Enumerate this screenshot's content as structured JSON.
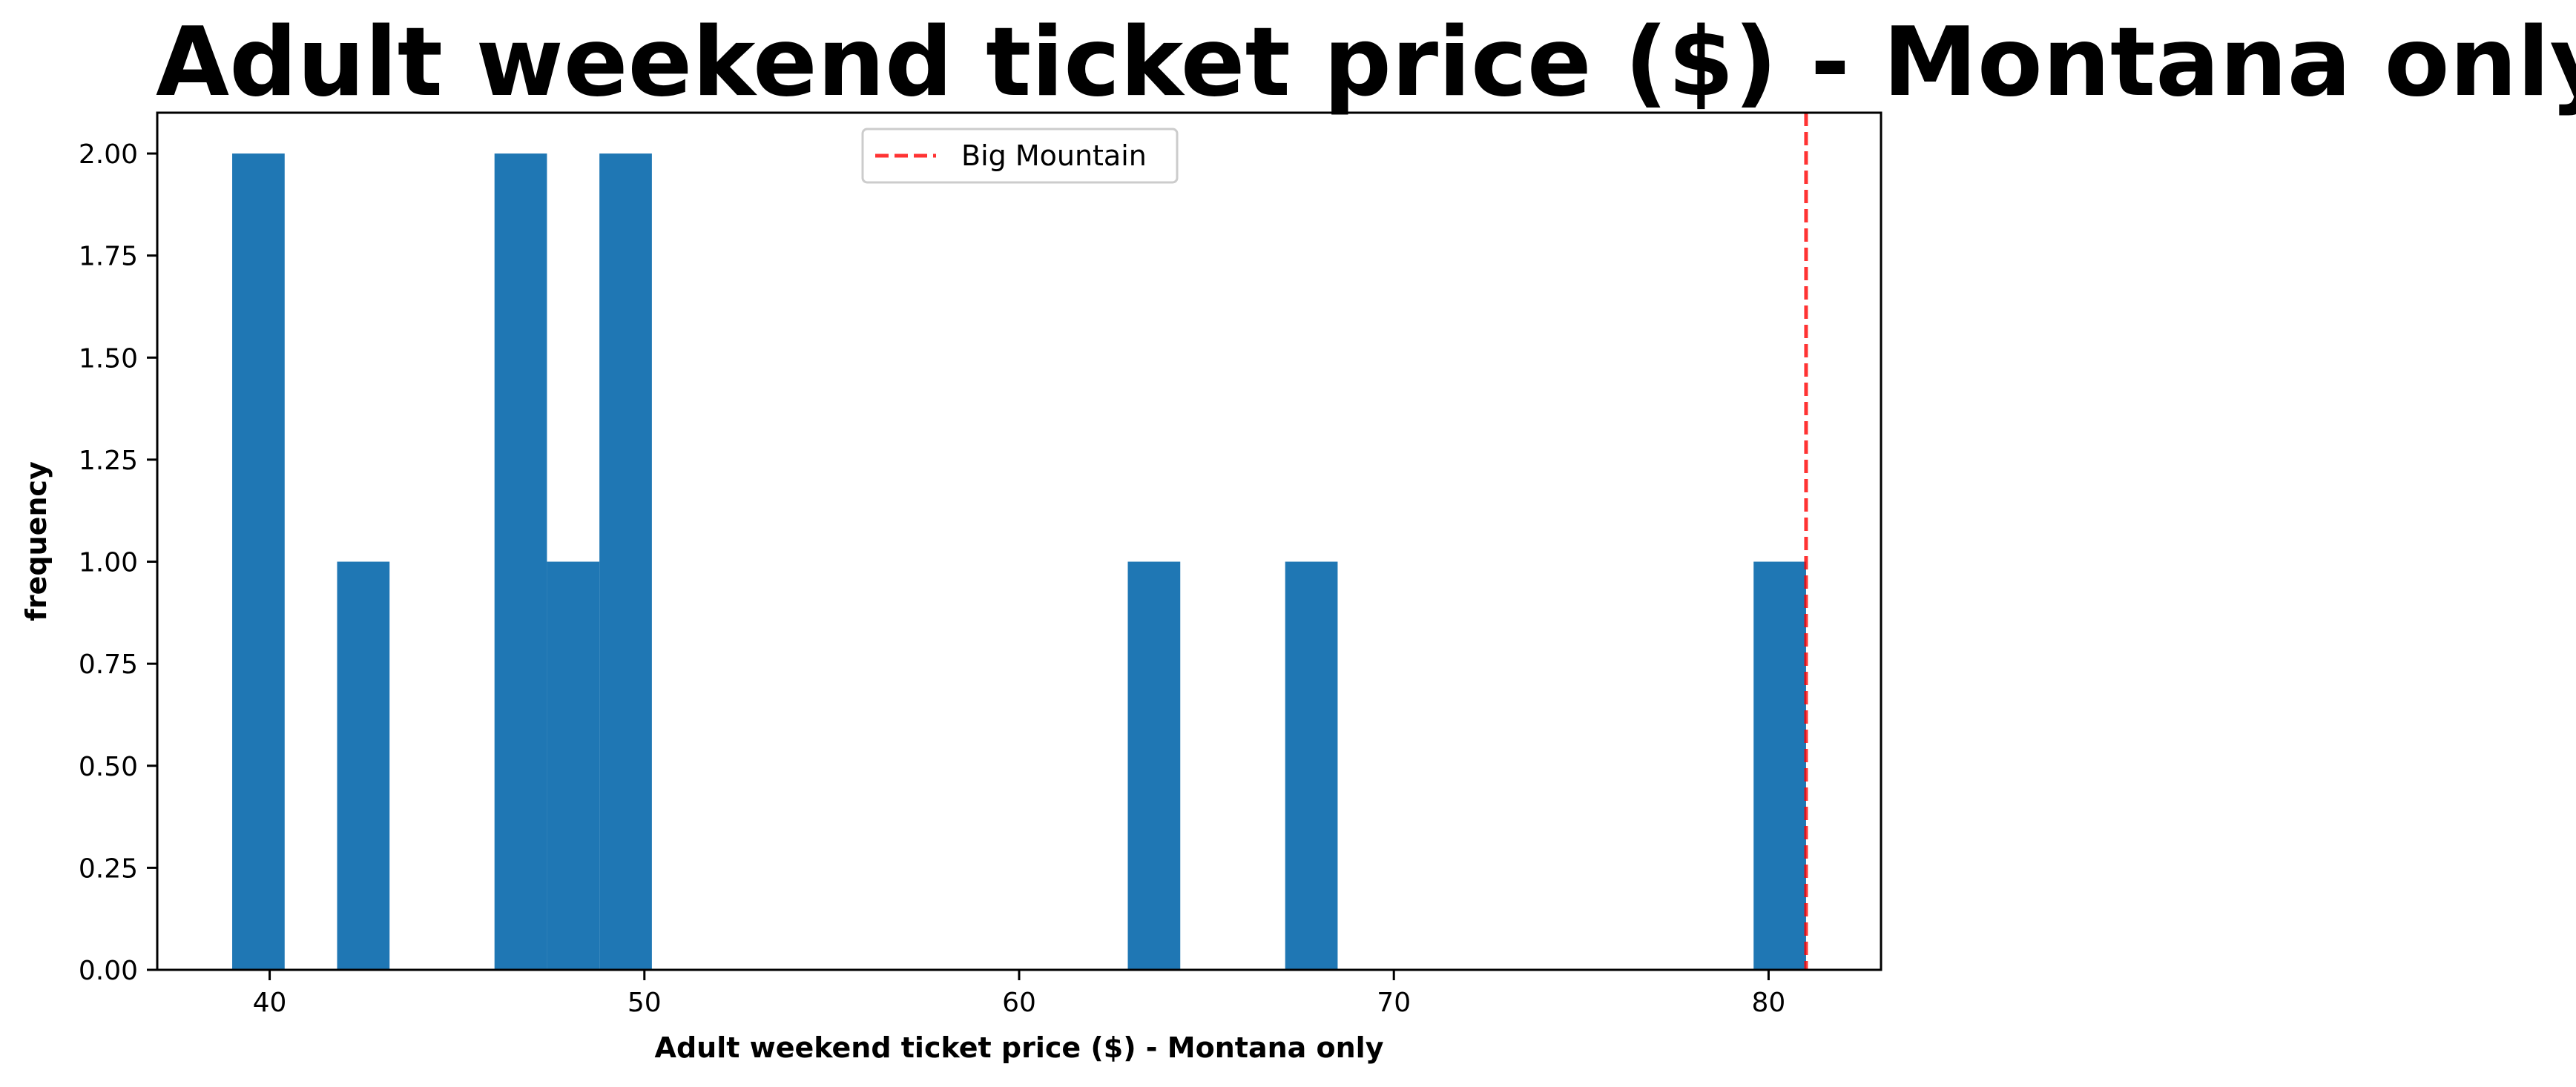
{
  "chart_data": {
    "type": "bar",
    "title": "Adult weekend ticket price ($) - Montana only",
    "xlabel": "Adult weekend ticket price ($) - Montana only",
    "ylabel": "frequency",
    "xlim": [
      37,
      83
    ],
    "ylim": [
      0,
      2.1
    ],
    "x_ticks": [
      "40",
      "50",
      "60",
      "70",
      "80"
    ],
    "y_ticks": [
      "0.00",
      "0.25",
      "0.50",
      "0.75",
      "1.00",
      "1.25",
      "1.50",
      "1.75",
      "2.00"
    ],
    "bins": [
      {
        "x0": 39.0,
        "x1": 40.4,
        "count": 2
      },
      {
        "x0": 41.8,
        "x1": 43.2,
        "count": 1
      },
      {
        "x0": 46.0,
        "x1": 47.4,
        "count": 2
      },
      {
        "x0": 47.4,
        "x1": 48.8,
        "count": 1
      },
      {
        "x0": 48.8,
        "x1": 50.2,
        "count": 2
      },
      {
        "x0": 62.9,
        "x1": 64.3,
        "count": 1
      },
      {
        "x0": 67.1,
        "x1": 68.5,
        "count": 1
      },
      {
        "x0": 79.6,
        "x1": 81.0,
        "count": 1
      }
    ],
    "bar_color": "#1f77b4",
    "reference_line": {
      "label": "Big Mountain",
      "x": 81.0,
      "color": "#ff0000",
      "style": "dashed"
    },
    "legend_position": "upper center",
    "grid": false
  }
}
